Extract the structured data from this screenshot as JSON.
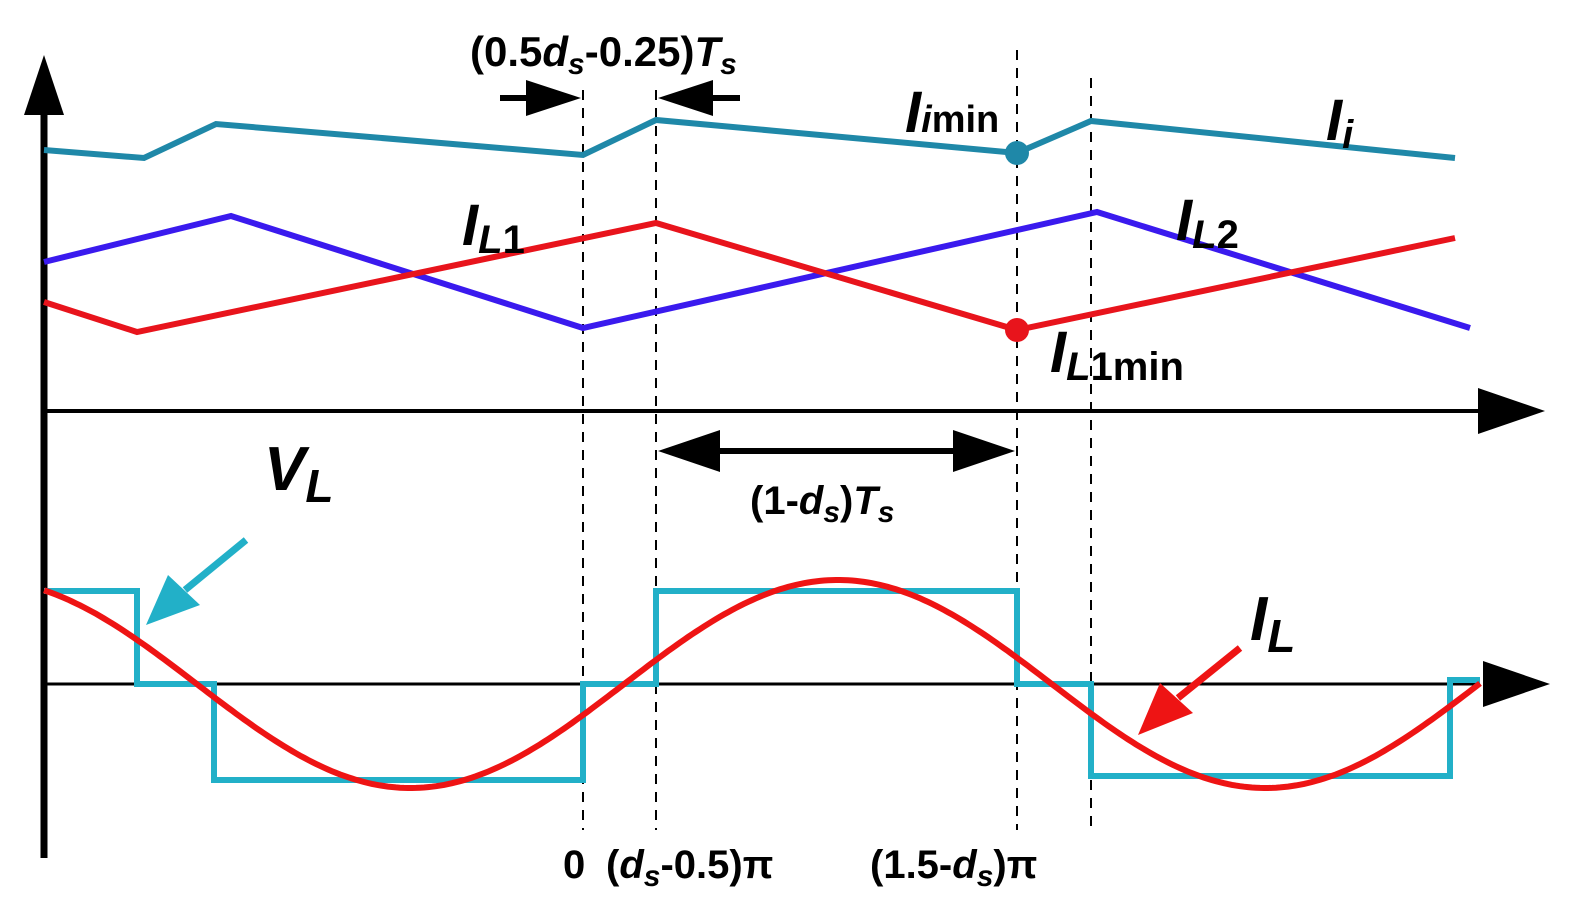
{
  "colors": {
    "axis": "#000000",
    "ii": "#1f88a8",
    "il1": "#e8141c",
    "il2": "#3a1aee",
    "vl": "#22b0c8",
    "il": "#ee1414"
  },
  "labels": {
    "ii_main": "I",
    "ii_sub": "i",
    "iimin_main": "I",
    "iimin_sub_i": "i",
    "iimin_sub_min": "min",
    "il1_main": "I",
    "il1_sub_l": "L",
    "il1_sub_n": "1",
    "il2_main": "I",
    "il2_sub_l": "L",
    "il2_sub_n": "2",
    "il1min_main": "I",
    "il1min_sub_l": "L",
    "il1min_sub_rest": "1min",
    "vl_main": "V",
    "vl_sub": "L",
    "il_main": "I",
    "il_sub": "L"
  },
  "annotations": {
    "top_interval": {
      "open": "(0.5",
      "d": "d",
      "s1": "s",
      "mid": "-0.25)",
      "T": "T",
      "s2": "s"
    },
    "mid_interval": {
      "open": "(1-",
      "d": "d",
      "s1": "s",
      "close": ")",
      "T": "T",
      "s2": "s"
    }
  },
  "ticks": {
    "zero": "0",
    "t1": {
      "open": "(",
      "d": "d",
      "s": "s",
      "rest": "-0.5)π"
    },
    "t2": {
      "open": "(1.5-",
      "d": "d",
      "s": "s",
      "rest": ")π"
    }
  }
}
